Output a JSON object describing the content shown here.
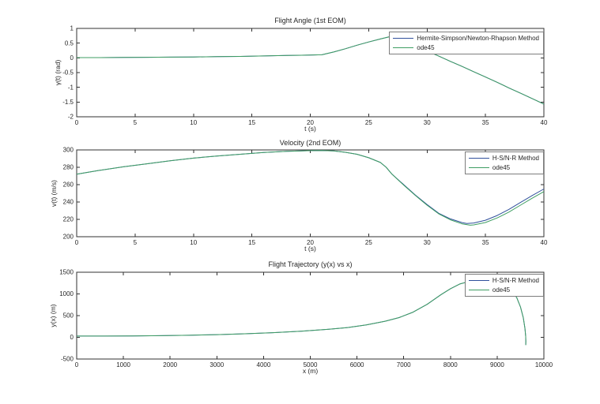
{
  "figure": {
    "background": "#ffffff",
    "axis_color": "#303030",
    "text_color": "#262626"
  },
  "chart_data": [
    {
      "type": "line",
      "title": "Flight Angle (1st EOM)",
      "xlabel": "t (s)",
      "ylabel": "γ(t) (rad)",
      "xlim": [
        0,
        40
      ],
      "ylim": [
        -2,
        1
      ],
      "xticks": [
        0,
        5,
        10,
        15,
        20,
        25,
        30,
        35,
        40
      ],
      "yticks": [
        -2,
        -1.5,
        -1,
        -0.5,
        0,
        0.5,
        1
      ],
      "grid": false,
      "legend_position": "northeast",
      "series": [
        {
          "name": "Hermite-Simpson/Newton-Rhapson Method",
          "color": "#30509c",
          "points": [
            [
              0,
              0.01
            ],
            [
              2,
              0.01
            ],
            [
              4,
              0.015
            ],
            [
              6,
              0.02
            ],
            [
              8,
              0.025
            ],
            [
              10,
              0.03
            ],
            [
              12,
              0.04
            ],
            [
              14,
              0.05
            ],
            [
              16,
              0.065
            ],
            [
              18,
              0.08
            ],
            [
              20,
              0.095
            ],
            [
              21,
              0.105
            ],
            [
              22,
              0.2
            ],
            [
              23,
              0.31
            ],
            [
              24,
              0.43
            ],
            [
              25,
              0.54
            ],
            [
              26,
              0.64
            ],
            [
              26.8,
              0.72
            ],
            [
              27.3,
              0.69
            ],
            [
              28,
              0.58
            ],
            [
              29,
              0.41
            ],
            [
              30,
              0.23
            ],
            [
              31,
              0.06
            ],
            [
              32,
              -0.12
            ],
            [
              33,
              -0.29
            ],
            [
              34,
              -0.47
            ],
            [
              35,
              -0.65
            ],
            [
              36,
              -0.83
            ],
            [
              37,
              -1.02
            ],
            [
              38,
              -1.2
            ],
            [
              39,
              -1.38
            ],
            [
              40,
              -1.57
            ]
          ]
        },
        {
          "name": "ode45",
          "color": "#3f9e63",
          "points": [
            [
              0,
              0.01
            ],
            [
              2,
              0.01
            ],
            [
              4,
              0.015
            ],
            [
              6,
              0.02
            ],
            [
              8,
              0.025
            ],
            [
              10,
              0.03
            ],
            [
              12,
              0.04
            ],
            [
              14,
              0.05
            ],
            [
              16,
              0.065
            ],
            [
              18,
              0.08
            ],
            [
              20,
              0.095
            ],
            [
              21,
              0.105
            ],
            [
              22,
              0.2
            ],
            [
              23,
              0.31
            ],
            [
              24,
              0.43
            ],
            [
              25,
              0.54
            ],
            [
              26,
              0.64
            ],
            [
              26.8,
              0.72
            ],
            [
              27.3,
              0.69
            ],
            [
              28,
              0.58
            ],
            [
              29,
              0.41
            ],
            [
              30,
              0.23
            ],
            [
              31,
              0.06
            ],
            [
              32,
              -0.12
            ],
            [
              33,
              -0.29
            ],
            [
              34,
              -0.47
            ],
            [
              35,
              -0.65
            ],
            [
              36,
              -0.83
            ],
            [
              37,
              -1.02
            ],
            [
              38,
              -1.2
            ],
            [
              39,
              -1.38
            ],
            [
              40,
              -1.57
            ]
          ]
        }
      ]
    },
    {
      "type": "line",
      "title": "Velocity (2nd EOM)",
      "xlabel": "t (s)",
      "ylabel": "v(t) (m/s)",
      "xlim": [
        0,
        40
      ],
      "ylim": [
        200,
        300
      ],
      "xticks": [
        0,
        5,
        10,
        15,
        20,
        25,
        30,
        35,
        40
      ],
      "yticks": [
        200,
        220,
        240,
        260,
        280,
        300
      ],
      "grid": false,
      "legend_position": "northeast",
      "series": [
        {
          "name": "H-S/N-R Method",
          "color": "#30509c",
          "points": [
            [
              0,
              272
            ],
            [
              2,
              276.5
            ],
            [
              4,
              280.5
            ],
            [
              6,
              284
            ],
            [
              8,
              287.5
            ],
            [
              10,
              290.5
            ],
            [
              12,
              293
            ],
            [
              14,
              295
            ],
            [
              16,
              297
            ],
            [
              18,
              298.4
            ],
            [
              20,
              299.2
            ],
            [
              21,
              299.4
            ],
            [
              22,
              298.8
            ],
            [
              23,
              297.3
            ],
            [
              24,
              295
            ],
            [
              25,
              291
            ],
            [
              26,
              285.5
            ],
            [
              26.5,
              280
            ],
            [
              27,
              272
            ],
            [
              28,
              260
            ],
            [
              29,
              248
            ],
            [
              30,
              237
            ],
            [
              31,
              227
            ],
            [
              32,
              220.5
            ],
            [
              33,
              216.3
            ],
            [
              33.4,
              215.3
            ],
            [
              34,
              215.8
            ],
            [
              35,
              219
            ],
            [
              36,
              224.5
            ],
            [
              37,
              231.5
            ],
            [
              38,
              239.5
            ],
            [
              39,
              247.5
            ],
            [
              40,
              255
            ]
          ]
        },
        {
          "name": "ode45",
          "color": "#3f9e63",
          "points": [
            [
              0,
              272
            ],
            [
              2,
              276.5
            ],
            [
              4,
              280.5
            ],
            [
              6,
              284
            ],
            [
              8,
              287.5
            ],
            [
              10,
              290.5
            ],
            [
              12,
              293
            ],
            [
              14,
              295
            ],
            [
              16,
              297
            ],
            [
              18,
              298.4
            ],
            [
              20,
              299.2
            ],
            [
              21,
              299.4
            ],
            [
              22,
              298.8
            ],
            [
              23,
              297.3
            ],
            [
              24,
              295
            ],
            [
              25,
              291
            ],
            [
              26,
              285.5
            ],
            [
              26.5,
              280
            ],
            [
              27,
              272
            ],
            [
              28,
              259.5
            ],
            [
              29,
              247.5
            ],
            [
              30,
              236.3
            ],
            [
              31,
              226.4
            ],
            [
              32,
              219.5
            ],
            [
              33,
              214.8
            ],
            [
              33.7,
              213.3
            ],
            [
              34,
              213.6
            ],
            [
              35,
              216.4
            ],
            [
              36,
              221.6
            ],
            [
              37,
              228.4
            ],
            [
              38,
              236.4
            ],
            [
              39,
              244.4
            ],
            [
              40,
              252
            ]
          ]
        }
      ]
    },
    {
      "type": "line",
      "title": "Flight Trajectory (y(x) vs x)",
      "xlabel": "x (m)",
      "ylabel": "y(x) (m)",
      "xlim": [
        0,
        10000
      ],
      "ylim": [
        -500,
        1500
      ],
      "xticks": [
        0,
        1000,
        2000,
        3000,
        4000,
        5000,
        6000,
        7000,
        8000,
        9000,
        10000
      ],
      "yticks": [
        -500,
        0,
        500,
        1000,
        1500
      ],
      "grid": false,
      "legend_position": "northeast",
      "series": [
        {
          "name": "H-S/N-R Method",
          "color": "#30509c",
          "points": [
            [
              0,
              30
            ],
            [
              600,
              30
            ],
            [
              1200,
              33
            ],
            [
              1800,
              38
            ],
            [
              2400,
              47
            ],
            [
              3000,
              62
            ],
            [
              3600,
              82
            ],
            [
              4200,
              108
            ],
            [
              4800,
              140
            ],
            [
              5400,
              185
            ],
            [
              5800,
              225
            ],
            [
              6200,
              285
            ],
            [
              6600,
              370
            ],
            [
              6900,
              455
            ],
            [
              7200,
              580
            ],
            [
              7500,
              760
            ],
            [
              7800,
              985
            ],
            [
              8000,
              1120
            ],
            [
              8200,
              1230
            ],
            [
              8400,
              1285
            ],
            [
              8600,
              1302
            ],
            [
              8800,
              1300
            ],
            [
              9000,
              1272
            ],
            [
              9150,
              1215
            ],
            [
              9300,
              1095
            ],
            [
              9420,
              915
            ],
            [
              9500,
              700
            ],
            [
              9560,
              450
            ],
            [
              9595,
              200
            ],
            [
              9610,
              20
            ],
            [
              9615,
              -90
            ],
            [
              9612,
              -178
            ]
          ]
        },
        {
          "name": "ode45",
          "color": "#3f9e63",
          "points": [
            [
              0,
              30
            ],
            [
              600,
              30
            ],
            [
              1200,
              33
            ],
            [
              1800,
              38
            ],
            [
              2400,
              47
            ],
            [
              3000,
              62
            ],
            [
              3600,
              82
            ],
            [
              4200,
              108
            ],
            [
              4800,
              140
            ],
            [
              5400,
              185
            ],
            [
              5800,
              225
            ],
            [
              6200,
              285
            ],
            [
              6600,
              370
            ],
            [
              6900,
              455
            ],
            [
              7200,
              580
            ],
            [
              7500,
              760
            ],
            [
              7800,
              985
            ],
            [
              8000,
              1120
            ],
            [
              8200,
              1230
            ],
            [
              8400,
              1285
            ],
            [
              8600,
              1302
            ],
            [
              8800,
              1300
            ],
            [
              9000,
              1272
            ],
            [
              9150,
              1215
            ],
            [
              9300,
              1095
            ],
            [
              9420,
              915
            ],
            [
              9500,
              700
            ],
            [
              9560,
              450
            ],
            [
              9595,
              200
            ],
            [
              9610,
              20
            ],
            [
              9615,
              -90
            ],
            [
              9612,
              -178
            ]
          ]
        }
      ]
    }
  ]
}
